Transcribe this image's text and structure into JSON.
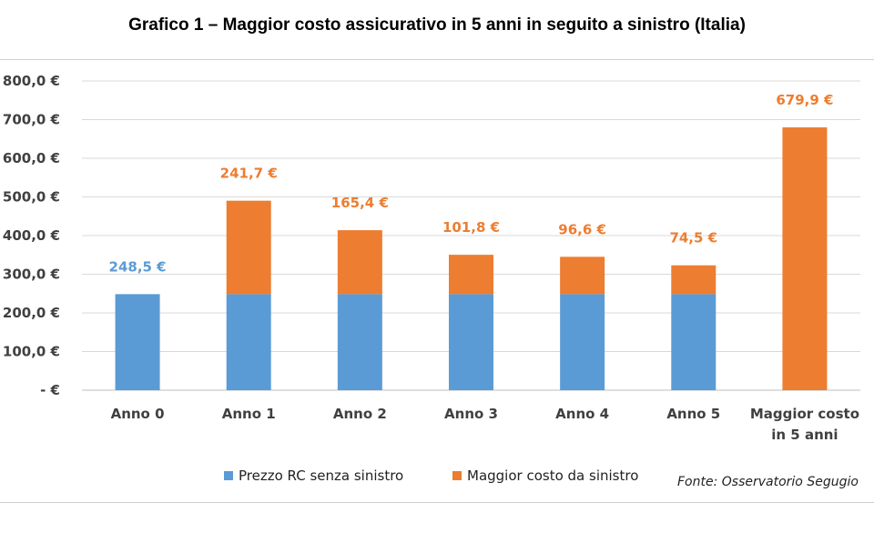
{
  "title": "Grafico 1 – Maggior costo assicurativo in 5 anni in seguito a sinistro (Italia)",
  "source": "Fonte: Osservatorio Segugio",
  "colors": {
    "series1": "#5b9bd5",
    "series2": "#ed7d31"
  },
  "chart_data": {
    "type": "bar",
    "stacked": true,
    "title": "Grafico 1 – Maggior costo assicurativo in 5 anni in seguito a sinistro (Italia)",
    "categories": [
      [
        "Anno 0"
      ],
      [
        "Anno 1"
      ],
      [
        "Anno 2"
      ],
      [
        "Anno 3"
      ],
      [
        "Anno 4"
      ],
      [
        "Anno 5"
      ],
      [
        "Maggior costo",
        "in 5 anni"
      ]
    ],
    "series": [
      {
        "name": "Prezzo RC senza sinistro",
        "color": "#5b9bd5",
        "values": [
          248.5,
          248.5,
          248.5,
          248.5,
          248.5,
          248.5,
          0
        ]
      },
      {
        "name": "Maggior costo da sinistro",
        "color": "#ed7d31",
        "values": [
          0,
          241.7,
          165.4,
          101.8,
          96.6,
          74.5,
          679.9
        ]
      }
    ],
    "data_labels": [
      "248,5 €",
      "241,7 €",
      "165,4 €",
      "101,8 €",
      "96,6 €",
      "74,5 €",
      "679,9 €"
    ],
    "data_label_series": [
      0,
      1,
      1,
      1,
      1,
      1,
      1
    ],
    "ylim": [
      0,
      800
    ],
    "yticks": [
      0,
      100,
      200,
      300,
      400,
      500,
      600,
      700,
      800
    ],
    "ytick_labels": [
      "-  €",
      "100,0 €",
      "200,0 €",
      "300,0 €",
      "400,0 €",
      "500,0 €",
      "600,0 €",
      "700,0 €",
      "800,0 €"
    ],
    "grid": true,
    "legend_position": "bottom"
  }
}
